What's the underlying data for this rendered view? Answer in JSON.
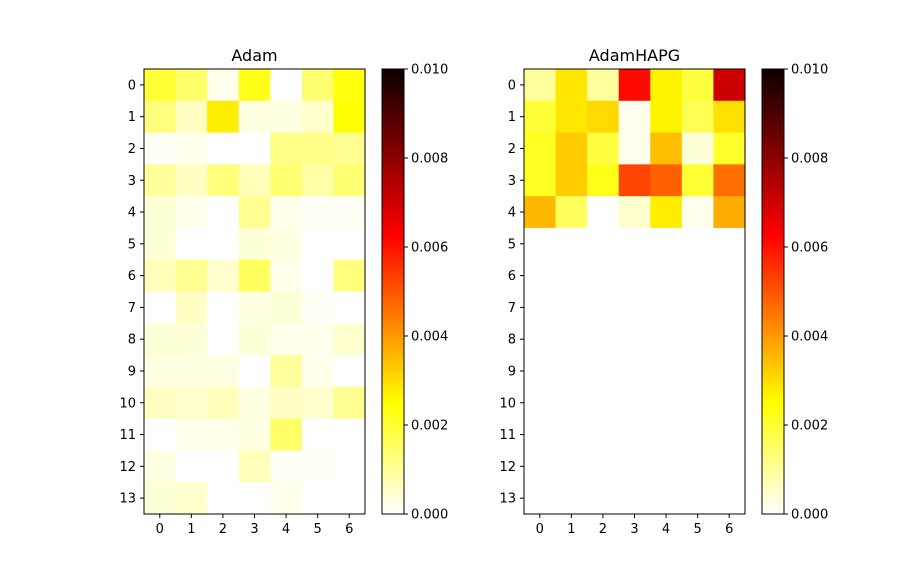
{
  "chart_data": [
    {
      "type": "heatmap",
      "title": "Adam",
      "x_ticks": [
        "0",
        "1",
        "2",
        "3",
        "4",
        "5",
        "6"
      ],
      "y_ticks": [
        "0",
        "1",
        "2",
        "3",
        "4",
        "5",
        "6",
        "7",
        "8",
        "9",
        "10",
        "11",
        "12",
        "13"
      ],
      "colormap": "hot_r",
      "vmin": 0.0,
      "vmax": 0.01,
      "colorbar_ticks": [
        "0.000",
        "0.002",
        "0.004",
        "0.006",
        "0.008",
        "0.010"
      ],
      "values": [
        [
          0.002,
          0.0015,
          0.0002,
          0.0023,
          0.0,
          0.0014,
          0.0024
        ],
        [
          0.0013,
          0.0006,
          0.0028,
          0.0003,
          0.0003,
          0.0005,
          0.0025
        ],
        [
          0.0001,
          0.0002,
          0.0,
          0.0,
          0.0012,
          0.0012,
          0.0011
        ],
        [
          0.001,
          0.0006,
          0.0013,
          0.0007,
          0.0014,
          0.0009,
          0.0014
        ],
        [
          0.0004,
          0.0002,
          0.0,
          0.0011,
          0.0002,
          0.0001,
          0.0001
        ],
        [
          0.0004,
          0.0,
          0.0,
          0.0004,
          0.0003,
          0.0,
          0.0
        ],
        [
          0.0007,
          0.0011,
          0.0005,
          0.0016,
          0.0002,
          0.0,
          0.0013
        ],
        [
          0.0,
          0.0006,
          0.0,
          0.0003,
          0.0004,
          0.0001,
          0.0
        ],
        [
          0.0004,
          0.0004,
          0.0,
          0.0004,
          0.0002,
          0.0002,
          0.0005
        ],
        [
          0.0003,
          0.0003,
          0.0003,
          0.0,
          0.001,
          0.0002,
          0.0
        ],
        [
          0.0006,
          0.0005,
          0.0007,
          0.0003,
          0.0006,
          0.0005,
          0.0011
        ],
        [
          0.0,
          0.0002,
          0.0002,
          0.0003,
          0.0015,
          0.0,
          0.0
        ],
        [
          0.0003,
          0.0,
          0.0,
          0.0007,
          0.0001,
          0.0001,
          0.0
        ],
        [
          0.0004,
          0.0005,
          0.0,
          0.0,
          0.0002,
          0.0,
          0.0
        ]
      ]
    },
    {
      "type": "heatmap",
      "title": "AdamHAPG",
      "x_ticks": [
        "0",
        "1",
        "2",
        "3",
        "4",
        "5",
        "6"
      ],
      "y_ticks": [
        "0",
        "1",
        "2",
        "3",
        "4",
        "5",
        "6",
        "7",
        "8",
        "9",
        "10",
        "11",
        "12",
        "13"
      ],
      "colormap": "hot_r",
      "vmin": 0.0,
      "vmax": 0.01,
      "colorbar_ticks": [
        "0.000",
        "0.002",
        "0.004",
        "0.006",
        "0.008",
        "0.010"
      ],
      "values": [
        [
          0.001,
          0.0029,
          0.001,
          0.0062,
          0.0027,
          0.0019,
          0.0071
        ],
        [
          0.002,
          0.0029,
          0.0031,
          0.0002,
          0.0027,
          0.0017,
          0.003
        ],
        [
          0.0022,
          0.0033,
          0.0019,
          0.0002,
          0.0035,
          0.0004,
          0.0021
        ],
        [
          0.0022,
          0.0033,
          0.0023,
          0.0053,
          0.0049,
          0.002,
          0.0047
        ],
        [
          0.0036,
          0.0016,
          0.0,
          0.0005,
          0.0028,
          0.0002,
          0.0038
        ],
        [
          0.0,
          0.0,
          0.0,
          0.0,
          0.0,
          0.0,
          0.0
        ],
        [
          0.0,
          0.0,
          0.0,
          0.0,
          0.0,
          0.0,
          0.0
        ],
        [
          0.0,
          0.0,
          0.0,
          0.0,
          0.0,
          0.0,
          0.0
        ],
        [
          0.0,
          0.0,
          0.0,
          0.0,
          0.0,
          0.0,
          0.0
        ],
        [
          0.0,
          0.0,
          0.0,
          0.0,
          0.0,
          0.0,
          0.0
        ],
        [
          0.0,
          0.0,
          0.0,
          0.0,
          0.0,
          0.0,
          0.0
        ],
        [
          0.0,
          0.0,
          0.0,
          0.0,
          0.0,
          0.0,
          0.0
        ],
        [
          0.0,
          0.0,
          0.0,
          0.0,
          0.0,
          0.0,
          0.0
        ],
        [
          0.0,
          0.0,
          0.0,
          0.0,
          0.0,
          0.0,
          0.0
        ]
      ]
    }
  ]
}
